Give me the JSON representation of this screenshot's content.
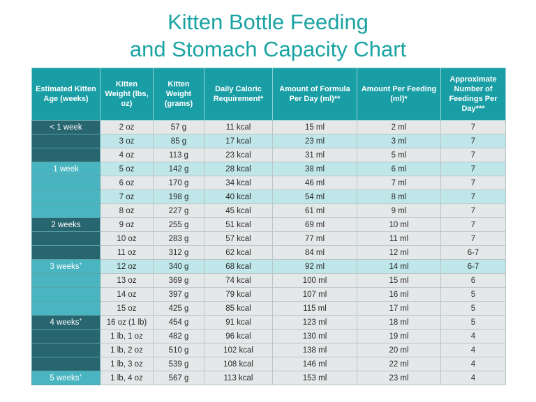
{
  "title": {
    "line1": "Kitten Bottle Feeding",
    "line2": "and Stomach Capacity Chart"
  },
  "colors": {
    "title": "#1aa3a3",
    "header_bg": "#1a9ea6",
    "age_dark": "#27656f",
    "age_light": "#49b5c0",
    "row_grey": "#e5e8e9",
    "row_teal": "#bfe6e8"
  },
  "headers": [
    "Estimated Kitten Age (weeks)",
    "Kitten Weight (lbs, oz)",
    "Kitten Weight (grams)",
    "Daily Caloric Requirement*",
    "Amount of Formula Per Day (ml)**",
    "Amount Per Feeding (ml)*",
    "Approximate Number of Feedings Per Day***"
  ],
  "rows": [
    {
      "age": "< 1 week",
      "oz": "2 oz",
      "g": "57 g",
      "kcal": "11 kcal",
      "day": "15 ml",
      "feed": "2 ml",
      "num": "7"
    },
    {
      "age": "",
      "oz": "3 oz",
      "g": "85 g",
      "kcal": "17 kcal",
      "day": "23 ml",
      "feed": "3 ml",
      "num": "7"
    },
    {
      "age": "",
      "oz": "4 oz",
      "g": "113 g",
      "kcal": "23 kcal",
      "day": "31 ml",
      "feed": "5 ml",
      "num": "7"
    },
    {
      "age": "1 week",
      "oz": "5 oz",
      "g": "142 g",
      "kcal": "28 kcal",
      "day": "38 ml",
      "feed": "6 ml",
      "num": "7"
    },
    {
      "age": "",
      "oz": "6 oz",
      "g": "170 g",
      "kcal": "34 kcal",
      "day": "46 ml",
      "feed": "7 ml",
      "num": "7"
    },
    {
      "age": "",
      "oz": "7 oz",
      "g": "198 g",
      "kcal": "40 kcal",
      "day": "54 ml",
      "feed": "8 ml",
      "num": "7"
    },
    {
      "age": "",
      "oz": "8 oz",
      "g": "227 g",
      "kcal": "45 kcal",
      "day": "61 ml",
      "feed": "9 ml",
      "num": "7"
    },
    {
      "age": "2 weeks",
      "oz": "9 oz",
      "g": "255 g",
      "kcal": "51 kcal",
      "day": "69 ml",
      "feed": "10 ml",
      "num": "7"
    },
    {
      "age": "",
      "oz": "10 oz",
      "g": "283 g",
      "kcal": "57 kcal",
      "day": "77 ml",
      "feed": "11 ml",
      "num": "7"
    },
    {
      "age": "",
      "oz": "11 oz",
      "g": "312 g",
      "kcal": "62 kcal",
      "day": "84 ml",
      "feed": "12 ml",
      "num": "6-7"
    },
    {
      "age": "3 weeks+",
      "oz": "12 oz",
      "g": "340 g",
      "kcal": "68 kcal",
      "day": "92 ml",
      "feed": "14 ml",
      "num": "6-7"
    },
    {
      "age": "",
      "oz": "13 oz",
      "g": "369 g",
      "kcal": "74 kcal",
      "day": "100 ml",
      "feed": "15 ml",
      "num": "6"
    },
    {
      "age": "",
      "oz": "14 oz",
      "g": "397 g",
      "kcal": "79 kcal",
      "day": "107 ml",
      "feed": "16 ml",
      "num": "5"
    },
    {
      "age": "",
      "oz": "15 oz",
      "g": "425 g",
      "kcal": "85 kcal",
      "day": "115 ml",
      "feed": "17 ml",
      "num": "5"
    },
    {
      "age": "4 weeks+",
      "oz": "16 oz (1 lb)",
      "g": "454 g",
      "kcal": "91 kcal",
      "day": "123 ml",
      "feed": "18 ml",
      "num": "5"
    },
    {
      "age": "",
      "oz": "1 lb, 1 oz",
      "g": "482 g",
      "kcal": "96 kcal",
      "day": "130 ml",
      "feed": "19 ml",
      "num": "4"
    },
    {
      "age": "",
      "oz": "1 lb, 2 oz",
      "g": "510 g",
      "kcal": "102 kcal",
      "day": "138 ml",
      "feed": "20 ml",
      "num": "4"
    },
    {
      "age": "",
      "oz": "1 lb, 3 oz",
      "g": "539 g",
      "kcal": "108 kcal",
      "day": "146 ml",
      "feed": "22 ml",
      "num": "4"
    },
    {
      "age": "5 weeks+",
      "oz": "1 lb, 4 oz",
      "g": "567 g",
      "kcal": "113 kcal",
      "day": "153 ml",
      "feed": "23 ml",
      "num": "4"
    }
  ]
}
